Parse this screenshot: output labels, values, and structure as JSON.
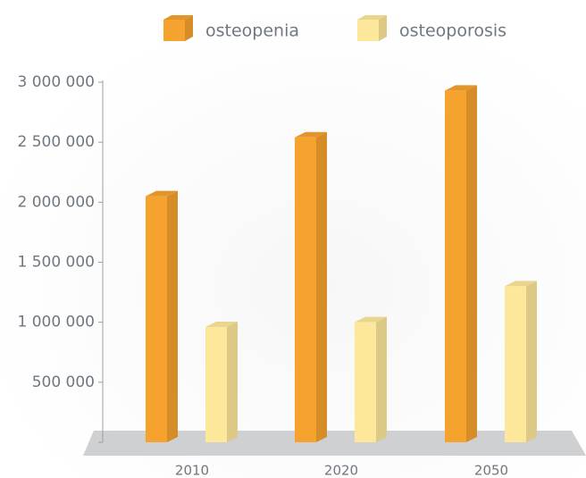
{
  "chart_data": {
    "type": "bar3d",
    "categories": [
      "2010",
      "2020",
      "2050"
    ],
    "series": [
      {
        "name": "osteopenia",
        "color": "#f6a22e",
        "values": [
          2050000,
          2540000,
          2930000
        ]
      },
      {
        "name": "osteoporosis",
        "color": "#fde79a",
        "values": [
          960000,
          1000000,
          1300000
        ]
      }
    ],
    "ylim": [
      0,
      3000000
    ],
    "yticks": [
      {
        "value": 500000,
        "label": "500 000"
      },
      {
        "value": 1000000,
        "label": "1 000 000"
      },
      {
        "value": 1500000,
        "label": "1 500 000"
      },
      {
        "value": 2000000,
        "label": "2 000 000"
      },
      {
        "value": 2500000,
        "label": "2 500 000"
      },
      {
        "value": 3000000,
        "label": "3 000 000"
      }
    ]
  }
}
